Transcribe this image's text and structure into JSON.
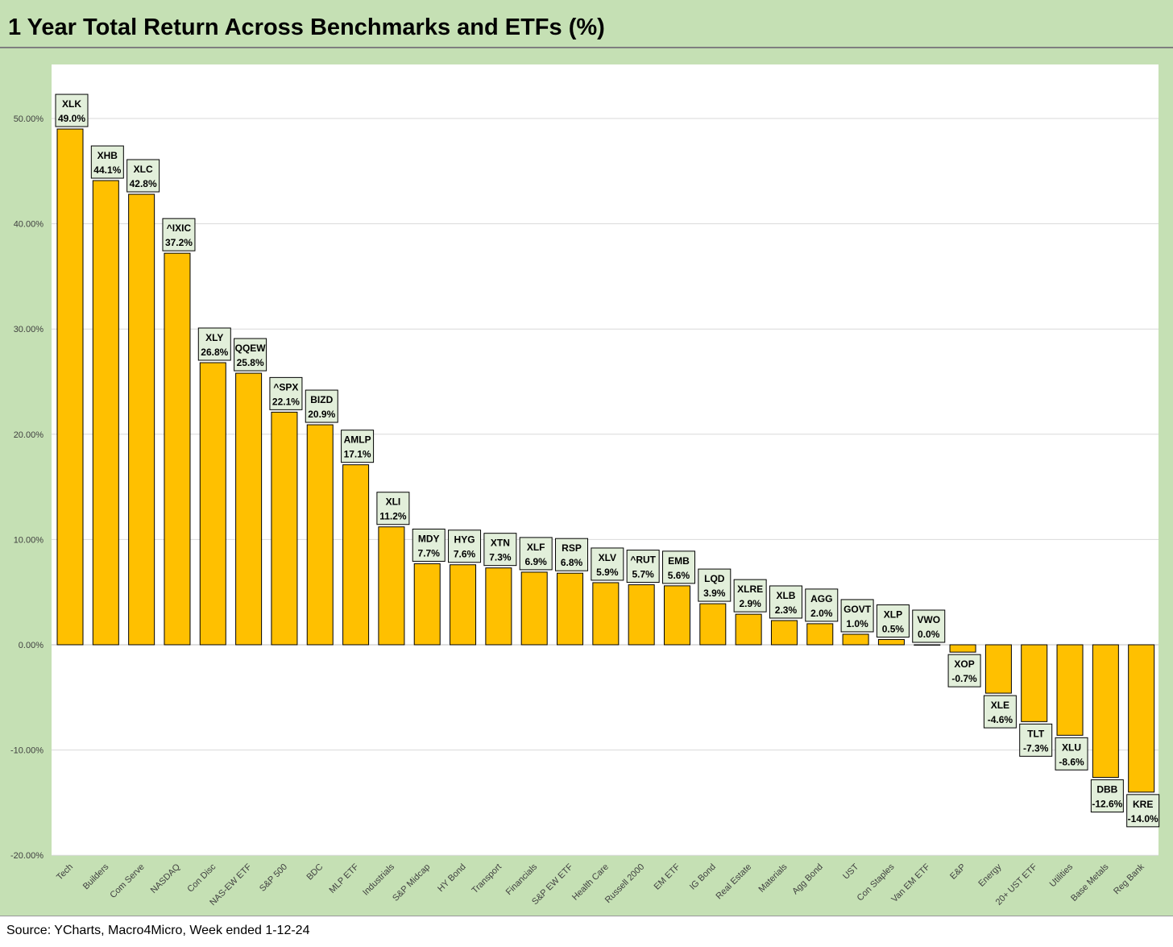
{
  "title": "1 Year Total Return Across Benchmarks and ETFs (%)",
  "source": "Source: YCharts, Macro4Micro, Week ended 1-12-24",
  "colors": {
    "bar": "#ffc000",
    "frame": "#c5e0b4",
    "label_bg": "#e2efda",
    "grid": "#d9d9d9"
  },
  "chart_data": {
    "type": "bar",
    "title": "1 Year Total Return Across Benchmarks and ETFs (%)",
    "ylim": [
      -20,
      55
    ],
    "yticks": [
      {
        "value": 50,
        "label": "50.00%"
      },
      {
        "value": 40,
        "label": "40.00%"
      },
      {
        "value": 30,
        "label": "30.00%"
      },
      {
        "value": 20,
        "label": "20.00%"
      },
      {
        "value": 10,
        "label": "10.00%"
      },
      {
        "value": 0,
        "label": "0.00%"
      },
      {
        "value": -10,
        "label": "-10.00%"
      },
      {
        "value": -20,
        "label": "-20.00%"
      }
    ],
    "grid": true,
    "categories": [
      "Tech",
      "Builders",
      "Com Serve",
      "NASDAQ",
      "Con Disc",
      "NAS-EW ETF",
      "S&P 500",
      "BDC",
      "MLP ETF",
      "Industrials",
      "S&P Midcap",
      "HY Bond",
      "Transport",
      "Financials",
      "S&P EW ETF",
      "Health Care",
      "Russell 2000",
      "EM ETF",
      "IG Bond",
      "Real Estate",
      "Materials",
      "Agg Bond",
      "UST",
      "Con Staples",
      "Van EM ETF",
      "E&P",
      "Energy",
      "20+ UST ETF",
      "Utilities",
      "Base Metals",
      "Reg Bank"
    ],
    "tickers": [
      "XLK",
      "XHB",
      "XLC",
      "^IXIC",
      "XLY",
      "QQEW",
      "^SPX",
      "BIZD",
      "AMLP",
      "XLI",
      "MDY",
      "HYG",
      "XTN",
      "XLF",
      "RSP",
      "XLV",
      "^RUT",
      "EMB",
      "LQD",
      "XLRE",
      "XLB",
      "AGG",
      "GOVT",
      "XLP",
      "VWO",
      "XOP",
      "XLE",
      "TLT",
      "XLU",
      "DBB",
      "KRE"
    ],
    "values": [
      49.0,
      44.1,
      42.8,
      37.2,
      26.8,
      25.8,
      22.1,
      20.9,
      17.1,
      11.2,
      7.7,
      7.6,
      7.3,
      6.9,
      6.8,
      5.9,
      5.7,
      5.6,
      3.9,
      2.9,
      2.3,
      2.0,
      1.0,
      0.5,
      0.0,
      -0.7,
      -4.6,
      -7.3,
      -8.6,
      -12.6,
      -14.0
    ],
    "data_labels": [
      "49.0%",
      "44.1%",
      "42.8%",
      "37.2%",
      "26.8%",
      "25.8%",
      "22.1%",
      "20.9%",
      "17.1%",
      "11.2%",
      "7.7%",
      "7.6%",
      "7.3%",
      "6.9%",
      "6.8%",
      "5.9%",
      "5.7%",
      "5.6%",
      "3.9%",
      "2.9%",
      "2.3%",
      "2.0%",
      "1.0%",
      "0.5%",
      "0.0%",
      "-0.7%",
      "-4.6%",
      "-7.3%",
      "-8.6%",
      "-12.6%",
      "-14.0%"
    ]
  }
}
